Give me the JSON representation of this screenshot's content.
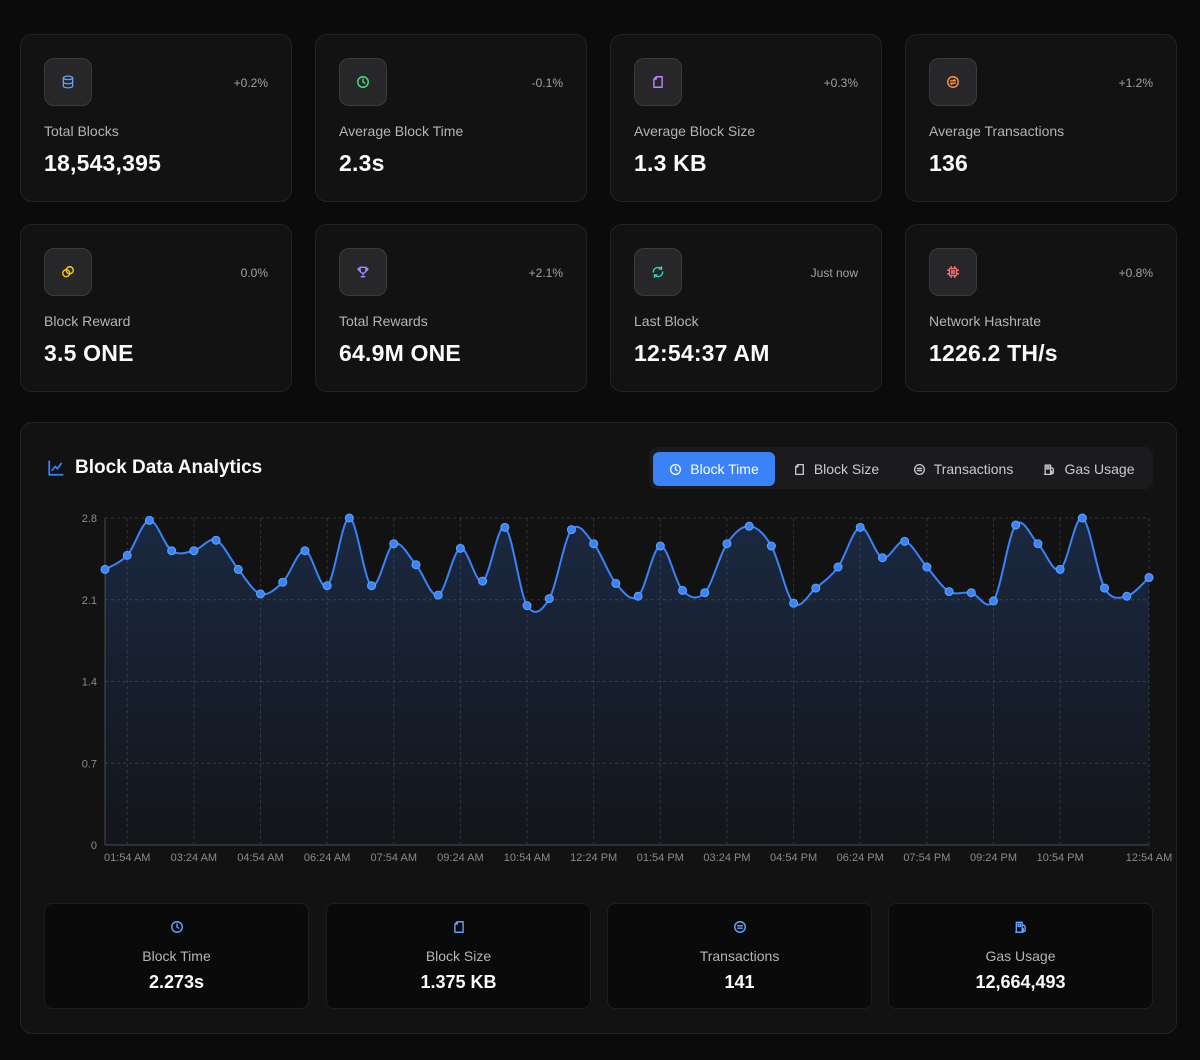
{
  "stats": [
    {
      "label": "Total Blocks",
      "value": "18,543,395",
      "change": "+0.2%",
      "icon": "database-icon",
      "color": "#60a5fa"
    },
    {
      "label": "Average Block Time",
      "value": "2.3s",
      "change": "-0.1%",
      "icon": "clock-icon",
      "color": "#4ade80"
    },
    {
      "label": "Average Block Size",
      "value": "1.3 KB",
      "change": "+0.3%",
      "icon": "file-icon",
      "color": "#c084fc"
    },
    {
      "label": "Average Transactions",
      "value": "136",
      "change": "+1.2%",
      "icon": "transfer-icon",
      "color": "#fb923c"
    },
    {
      "label": "Block Reward",
      "value": "3.5 ONE",
      "change": "0.0%",
      "icon": "coins-icon",
      "color": "#facc15"
    },
    {
      "label": "Total Rewards",
      "value": "64.9M ONE",
      "change": "+2.1%",
      "icon": "trophy-icon",
      "color": "#a78bfa"
    },
    {
      "label": "Last Block",
      "value": "12:54:37 AM",
      "change": "Just now",
      "icon": "refresh-icon",
      "color": "#2dd4bf"
    },
    {
      "label": "Network Hashrate",
      "value": "1226.2 TH/s",
      "change": "+0.8%",
      "icon": "cpu-icon",
      "color": "#f87171"
    }
  ],
  "analytics": {
    "title": "Block Data Analytics",
    "title_icon": "line-chart-icon",
    "accent": "#3b82f6",
    "tabs": [
      {
        "label": "Block Time",
        "icon": "clock-icon",
        "active": true
      },
      {
        "label": "Block Size",
        "icon": "file-icon",
        "active": false
      },
      {
        "label": "Transactions",
        "icon": "transfer-icon",
        "active": false
      },
      {
        "label": "Gas Usage",
        "icon": "fuel-icon",
        "active": false
      }
    ]
  },
  "summary": [
    {
      "label": "Block Time",
      "value": "2.273s",
      "icon": "clock-icon"
    },
    {
      "label": "Block Size",
      "value": "1.375 KB",
      "icon": "file-icon"
    },
    {
      "label": "Transactions",
      "value": "141",
      "icon": "transfer-icon"
    },
    {
      "label": "Gas Usage",
      "value": "12,664,493",
      "icon": "fuel-icon"
    }
  ],
  "chart_data": {
    "type": "area",
    "ylim": [
      0,
      2.8
    ],
    "yticks": [
      "0",
      "0.7",
      "1.4",
      "2.1",
      "2.8"
    ],
    "xtick_labels": [
      "01:54 AM",
      "03:24 AM",
      "04:54 AM",
      "06:24 AM",
      "07:54 AM",
      "09:24 AM",
      "10:54 AM",
      "12:24 PM",
      "01:54 PM",
      "03:24 PM",
      "04:54 PM",
      "06:24 PM",
      "07:54 PM",
      "09:24 PM",
      "10:54 PM",
      "12:54 AM"
    ],
    "grid": true,
    "series": [
      {
        "values": [
          2.36,
          2.48,
          2.78,
          2.52,
          2.52,
          2.61,
          2.36,
          2.15,
          2.25,
          2.52,
          2.22,
          2.8,
          2.22,
          2.58,
          2.4,
          2.14,
          2.54,
          2.26,
          2.72,
          2.05,
          2.11,
          2.7,
          2.58,
          2.24,
          2.13,
          2.56,
          2.18,
          2.16,
          2.58,
          2.73,
          2.56,
          2.07,
          2.2,
          2.38,
          2.72,
          2.46,
          2.6,
          2.38,
          2.17,
          2.16,
          2.09,
          2.74,
          2.58,
          2.36,
          2.8,
          2.2,
          2.13,
          2.29
        ]
      }
    ]
  }
}
